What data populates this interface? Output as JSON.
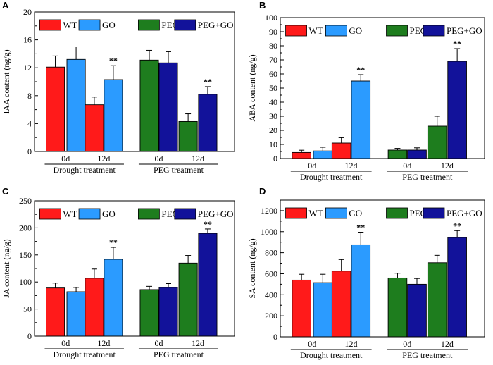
{
  "colors": {
    "WT": "#ff1a1a",
    "GO": "#2b9bff",
    "PEG": "#1e7d1e",
    "PEG+GO": "#12129a",
    "axis": "#000000"
  },
  "chart_data": [
    {
      "panel": "A",
      "type": "bar",
      "ylabel": "IAA content (ng/g)",
      "ylim": [
        0,
        20
      ],
      "yticks": [
        0,
        4,
        8,
        12,
        16,
        20
      ],
      "legend": [
        "WT",
        "GO",
        "PEG",
        "PEG+GO"
      ],
      "groups": [
        {
          "label": "Drought treatment",
          "subgroups": [
            {
              "label": "0d",
              "bars": [
                {
                  "series": "WT",
                  "value": 12.1,
                  "error": 1.6
                },
                {
                  "series": "GO",
                  "value": 13.2,
                  "error": 1.8
                }
              ]
            },
            {
              "label": "12d",
              "bars": [
                {
                  "series": "WT",
                  "value": 6.7,
                  "error": 1.1
                },
                {
                  "series": "GO",
                  "value": 10.3,
                  "error": 2.0,
                  "sig": "**"
                }
              ]
            }
          ]
        },
        {
          "label": "PEG treatment",
          "subgroups": [
            {
              "label": "0d",
              "bars": [
                {
                  "series": "PEG",
                  "value": 13.1,
                  "error": 1.4
                },
                {
                  "series": "PEG+GO",
                  "value": 12.7,
                  "error": 1.6
                }
              ]
            },
            {
              "label": "12d",
              "bars": [
                {
                  "series": "PEG",
                  "value": 4.3,
                  "error": 1.1
                },
                {
                  "series": "PEG+GO",
                  "value": 8.2,
                  "error": 1.1,
                  "sig": "**"
                }
              ]
            }
          ]
        }
      ]
    },
    {
      "panel": "B",
      "type": "bar",
      "ylabel": "ABA content (ng/g)",
      "ylim": [
        0,
        100
      ],
      "yticks": [
        0,
        10,
        20,
        30,
        40,
        50,
        60,
        70,
        80,
        90,
        100
      ],
      "legend": [
        "WT",
        "GO",
        "PEG",
        "PEG+GO"
      ],
      "groups": [
        {
          "label": "Drought treatment",
          "subgroups": [
            {
              "label": "0d",
              "bars": [
                {
                  "series": "WT",
                  "value": 4.3,
                  "error": 1.6
                },
                {
                  "series": "GO",
                  "value": 5.4,
                  "error": 2.6
                }
              ]
            },
            {
              "label": "12d",
              "bars": [
                {
                  "series": "WT",
                  "value": 11.0,
                  "error": 3.8
                },
                {
                  "series": "GO",
                  "value": 55.0,
                  "error": 4.5,
                  "sig": "**"
                }
              ]
            }
          ]
        },
        {
          "label": "PEG treatment",
          "subgroups": [
            {
              "label": "0d",
              "bars": [
                {
                  "series": "PEG",
                  "value": 6.0,
                  "error": 1.2
                },
                {
                  "series": "PEG+GO",
                  "value": 6.0,
                  "error": 1.6
                }
              ]
            },
            {
              "label": "12d",
              "bars": [
                {
                  "series": "PEG",
                  "value": 23.0,
                  "error": 7.0
                },
                {
                  "series": "PEG+GO",
                  "value": 69.0,
                  "error": 9.0,
                  "sig": "**"
                }
              ]
            }
          ]
        }
      ]
    },
    {
      "panel": "C",
      "type": "bar",
      "ylabel": "JA content (ng/g)",
      "ylim": [
        0,
        250
      ],
      "yticks": [
        0,
        50,
        100,
        150,
        200,
        250
      ],
      "legend": [
        "WT",
        "GO",
        "PEG",
        "PEG+GO"
      ],
      "groups": [
        {
          "label": "Drought treatment",
          "subgroups": [
            {
              "label": "0d",
              "bars": [
                {
                  "series": "WT",
                  "value": 89,
                  "error": 9
                },
                {
                  "series": "GO",
                  "value": 82,
                  "error": 8
                }
              ]
            },
            {
              "label": "12d",
              "bars": [
                {
                  "series": "WT",
                  "value": 107,
                  "error": 17
                },
                {
                  "series": "GO",
                  "value": 142,
                  "error": 22,
                  "sig": "**"
                }
              ]
            }
          ]
        },
        {
          "label": "PEG treatment",
          "subgroups": [
            {
              "label": "0d",
              "bars": [
                {
                  "series": "PEG",
                  "value": 86,
                  "error": 6
                },
                {
                  "series": "PEG+GO",
                  "value": 90,
                  "error": 7
                }
              ]
            },
            {
              "label": "12d",
              "bars": [
                {
                  "series": "PEG",
                  "value": 135,
                  "error": 14
                },
                {
                  "series": "PEG+GO",
                  "value": 190,
                  "error": 8,
                  "sig": "**"
                }
              ]
            }
          ]
        }
      ]
    },
    {
      "panel": "D",
      "type": "bar",
      "ylabel": "SA content (ng/g)",
      "ylim": [
        0,
        1300
      ],
      "yticks": [
        0,
        200,
        400,
        600,
        800,
        1000,
        1200
      ],
      "legend": [
        "WT",
        "GO",
        "PEG",
        "PEG+GO"
      ],
      "groups": [
        {
          "label": "Drought treatment",
          "subgroups": [
            {
              "label": "0d",
              "bars": [
                {
                  "series": "WT",
                  "value": 540,
                  "error": 55
                },
                {
                  "series": "GO",
                  "value": 515,
                  "error": 80
                }
              ]
            },
            {
              "label": "12d",
              "bars": [
                {
                  "series": "WT",
                  "value": 625,
                  "error": 110
                },
                {
                  "series": "GO",
                  "value": 875,
                  "error": 120,
                  "sig": "**"
                }
              ]
            }
          ]
        },
        {
          "label": "PEG treatment",
          "subgroups": [
            {
              "label": "0d",
              "bars": [
                {
                  "series": "PEG",
                  "value": 560,
                  "error": 45
                },
                {
                  "series": "PEG+GO",
                  "value": 500,
                  "error": 55
                }
              ]
            },
            {
              "label": "12d",
              "bars": [
                {
                  "series": "PEG",
                  "value": 705,
                  "error": 70
                },
                {
                  "series": "PEG+GO",
                  "value": 945,
                  "error": 65,
                  "sig": "**"
                }
              ]
            }
          ]
        }
      ]
    }
  ]
}
